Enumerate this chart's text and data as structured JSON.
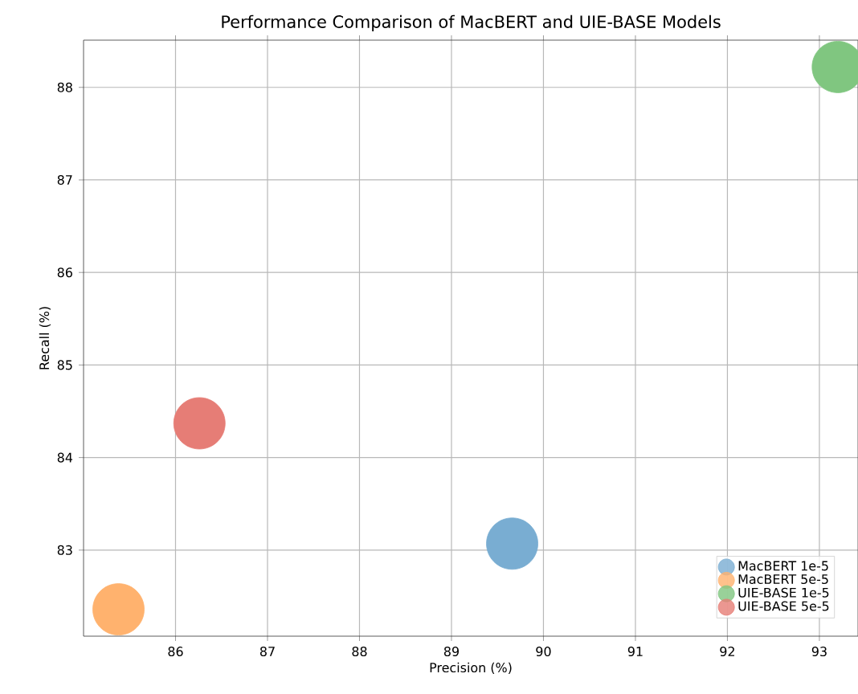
{
  "chart_data": {
    "type": "scatter",
    "title": "Performance Comparison of MacBERT and UIE-BASE Models",
    "xlabel": "Precision (%)",
    "ylabel": "Recall (%)",
    "xlim": [
      85.0,
      93.42
    ],
    "ylim": [
      82.07,
      88.51
    ],
    "xticks": [
      86,
      87,
      88,
      89,
      90,
      91,
      92,
      93
    ],
    "yticks": [
      83,
      84,
      85,
      86,
      87,
      88
    ],
    "grid": true,
    "legend": "bottom right",
    "marker": "circle",
    "series": [
      {
        "name": "MacBERT 1e-5",
        "color": "#79add2",
        "x": [
          89.66
        ],
        "values": [
          83.07
        ]
      },
      {
        "name": "MacBERT 5e-5",
        "color": "#ffb26e",
        "x": [
          85.38
        ],
        "values": [
          82.36
        ]
      },
      {
        "name": "UIE-BASE 1e-5",
        "color": "#80c680",
        "x": [
          93.2
        ],
        "values": [
          88.22
        ]
      },
      {
        "name": "UIE-BASE 5e-5",
        "color": "#e67d76",
        "x": [
          86.26
        ],
        "values": [
          84.37
        ]
      }
    ]
  }
}
